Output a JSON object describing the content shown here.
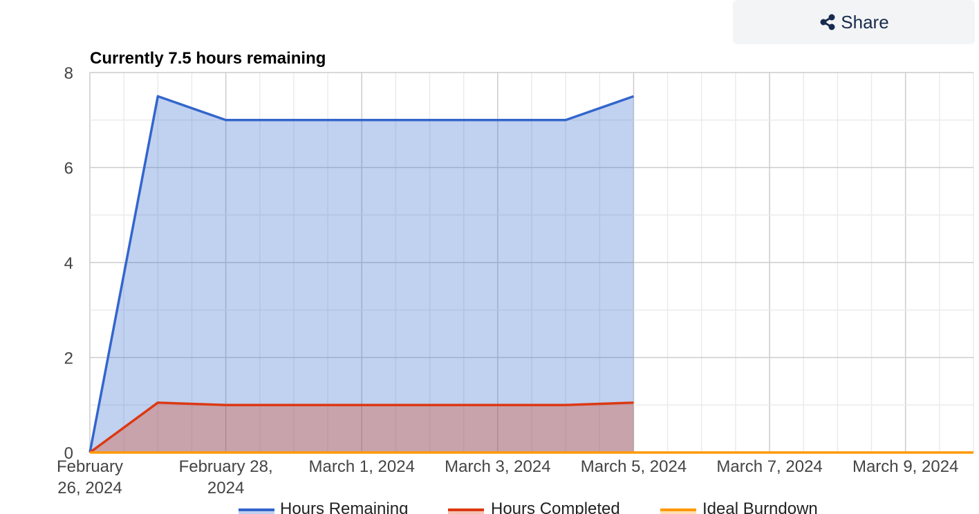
{
  "toolbar": {
    "share_label": "Share",
    "share_icon": "share-icon"
  },
  "chart_data": {
    "type": "area",
    "title": "Currently 7.5 hours remaining",
    "xlabel": "",
    "ylabel": "",
    "x_range": [
      "2024-02-26",
      "2024-03-10"
    ],
    "ylim": [
      0,
      8
    ],
    "y_ticks": [
      0,
      2,
      4,
      6,
      8
    ],
    "x_ticks": [
      {
        "date": "2024-02-26",
        "label": [
          "February",
          "26, 2024"
        ]
      },
      {
        "date": "2024-02-28",
        "label": [
          "February 28,",
          "2024"
        ]
      },
      {
        "date": "2024-03-01",
        "label": [
          "March 1, 2024"
        ]
      },
      {
        "date": "2024-03-03",
        "label": [
          "March 3, 2024"
        ]
      },
      {
        "date": "2024-03-05",
        "label": [
          "March 5, 2024"
        ]
      },
      {
        "date": "2024-03-07",
        "label": [
          "March 7, 2024"
        ]
      },
      {
        "date": "2024-03-09",
        "label": [
          "March 9, 2024"
        ]
      }
    ],
    "grid": true,
    "legend_position": "bottom",
    "series": [
      {
        "name": "Hours Remaining",
        "color": "#3366cc",
        "fill": "#c2d1f0",
        "x": [
          "2024-02-26",
          "2024-02-27",
          "2024-02-28",
          "2024-02-29",
          "2024-03-01",
          "2024-03-02",
          "2024-03-03",
          "2024-03-04",
          "2024-03-05"
        ],
        "y": [
          0,
          7.5,
          7,
          7,
          7,
          7,
          7,
          7,
          7.5
        ]
      },
      {
        "name": "Hours Completed",
        "color": "#dc3912",
        "fill": "#f5c1b4",
        "x": [
          "2024-02-26",
          "2024-02-27",
          "2024-02-28",
          "2024-02-29",
          "2024-03-01",
          "2024-03-02",
          "2024-03-03",
          "2024-03-04",
          "2024-03-05"
        ],
        "y": [
          0,
          1.05,
          1,
          1,
          1,
          1,
          1,
          1,
          1.05
        ]
      },
      {
        "name": "Ideal Burndown",
        "color": "#ff9900",
        "fill": "none",
        "x": [
          "2024-02-26",
          "2024-03-10"
        ],
        "y": [
          0,
          0
        ]
      }
    ]
  }
}
